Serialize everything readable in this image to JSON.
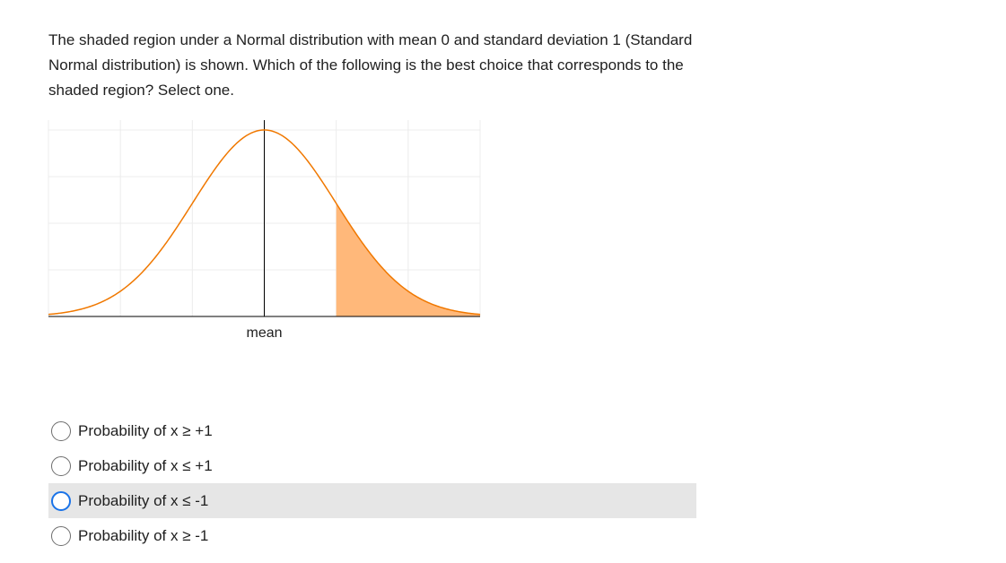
{
  "question": {
    "text": "The shaded region under a Normal distribution with mean 0 and standard deviation 1 (Standard Normal distribution) is shown. Which of the following is the best choice that corresponds to the shaded region? Select one."
  },
  "chart": {
    "x_label": "mean",
    "curve_color": "#f07800",
    "shade_color": "#ffb87a",
    "grid_color": "#ececec",
    "axis_color": "#000000"
  },
  "chart_data": {
    "type": "area",
    "distribution": "normal",
    "mean": 0,
    "sd": 1,
    "x_range": [
      -3,
      3
    ],
    "shaded_region": {
      "from": 1,
      "to": 3
    },
    "tick_labels": [
      "mean"
    ],
    "grid": true
  },
  "options": [
    {
      "label": "Probability of x ≥ +1",
      "highlighted": false
    },
    {
      "label": "Probability of x ≤ +1",
      "highlighted": false
    },
    {
      "label": "Probability of x ≤ -1",
      "highlighted": true
    },
    {
      "label": "Probability of x ≥ -1",
      "highlighted": false
    }
  ]
}
